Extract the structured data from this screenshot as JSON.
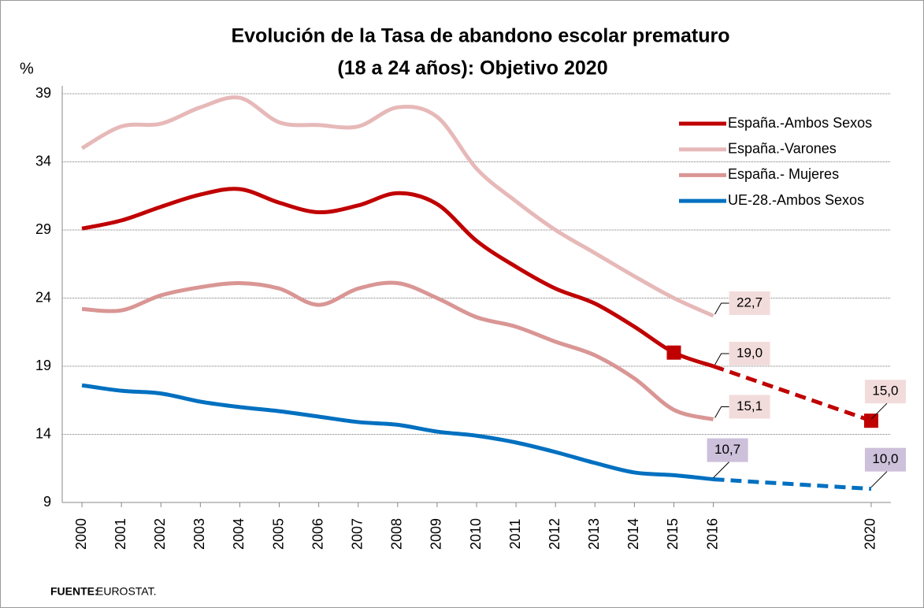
{
  "chart_data": {
    "type": "line",
    "title": [
      "Evolución de la Tasa de abandono escolar prematuro",
      "(18 a 24 años): Objetivo 2020"
    ],
    "y_label": "%",
    "source": {
      "label": "FUENTE:",
      "text": "EUROSTAT."
    },
    "x": [
      2000,
      2001,
      2002,
      2003,
      2004,
      2005,
      2006,
      2007,
      2008,
      2009,
      2010,
      2011,
      2012,
      2013,
      2014,
      2015,
      2016,
      2020
    ],
    "xlim": [
      1999.5,
      2020.5
    ],
    "xticks": [
      2000,
      2001,
      2002,
      2003,
      2004,
      2005,
      2006,
      2007,
      2008,
      2009,
      2010,
      2011,
      2012,
      2013,
      2014,
      2015,
      2016,
      2020
    ],
    "ylim": [
      9,
      39
    ],
    "yticks": [
      9,
      14,
      19,
      24,
      29,
      34,
      39
    ],
    "grid": true,
    "legend": "top-right",
    "dashed_after_x": 2016,
    "series": [
      {
        "name": "España.-Ambos Sexos",
        "color": "#c00000",
        "label_bg": "#f2dcdb",
        "marker_x": [
          2015,
          2020
        ],
        "values": [
          29.1,
          29.7,
          30.7,
          31.6,
          32.0,
          31.0,
          30.3,
          30.8,
          31.7,
          30.9,
          28.2,
          26.3,
          24.7,
          23.6,
          21.9,
          20.0,
          19.0,
          15.0
        ],
        "value_labels": [
          null,
          null,
          null,
          null,
          null,
          null,
          null,
          null,
          null,
          null,
          null,
          null,
          null,
          null,
          null,
          null,
          "19,0",
          "15,0"
        ]
      },
      {
        "name": "España.-Varones",
        "color": "#e6b9b8",
        "label_bg": "#f2dcdb",
        "values": [
          35.0,
          36.6,
          36.8,
          38.0,
          38.7,
          36.9,
          36.7,
          36.6,
          38.0,
          37.3,
          33.5,
          31.1,
          29.0,
          27.3,
          25.6,
          24.0,
          22.7,
          null
        ],
        "value_labels": [
          null,
          null,
          null,
          null,
          null,
          null,
          null,
          null,
          null,
          null,
          null,
          null,
          null,
          null,
          null,
          null,
          "22,7",
          null
        ]
      },
      {
        "name": "España.- Mujeres",
        "color": "#d99694",
        "label_bg": "#f2dcdb",
        "values": [
          23.2,
          23.1,
          24.2,
          24.8,
          25.1,
          24.7,
          23.5,
          24.7,
          25.1,
          24.0,
          22.6,
          21.9,
          20.8,
          19.8,
          18.1,
          15.8,
          15.1,
          null
        ],
        "value_labels": [
          null,
          null,
          null,
          null,
          null,
          null,
          null,
          null,
          null,
          null,
          null,
          null,
          null,
          null,
          null,
          null,
          "15,1",
          null
        ]
      },
      {
        "name": "UE-28.-Ambos Sexos",
        "color": "#0070c0",
        "label_bg": "#ccc0da",
        "values": [
          17.6,
          17.2,
          17.0,
          16.4,
          16.0,
          15.7,
          15.3,
          14.9,
          14.7,
          14.2,
          13.9,
          13.4,
          12.7,
          11.9,
          11.2,
          11.0,
          10.7,
          10.0
        ],
        "value_labels": [
          null,
          null,
          null,
          null,
          null,
          null,
          null,
          null,
          null,
          null,
          null,
          null,
          null,
          null,
          null,
          null,
          "10,7",
          "10,0"
        ]
      }
    ]
  }
}
